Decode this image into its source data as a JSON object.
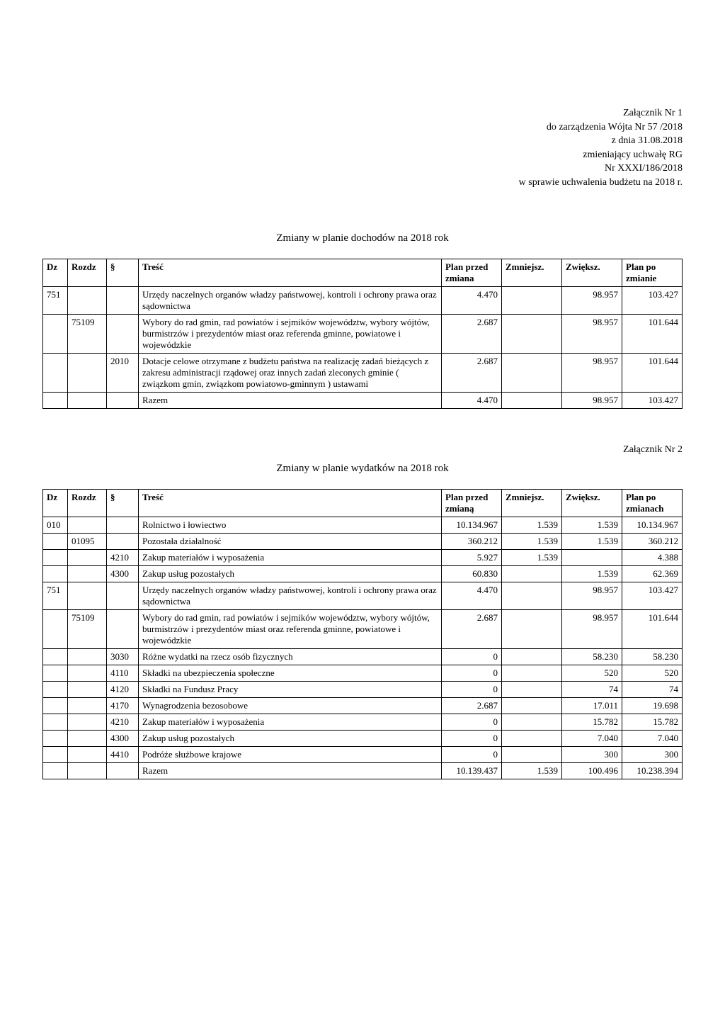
{
  "header": {
    "line1": "Załącznik Nr 1",
    "line2": "do zarządzenia Wójta Nr  57 /2018",
    "line3": "z dnia 31.08.2018",
    "line4": "zmieniający uchwałę RG",
    "line5": "Nr XXXI/186/2018",
    "line6": "w sprawie uchwalenia budżetu na 2018 r."
  },
  "table1": {
    "title": "Zmiany w planie dochodów na 2018 rok",
    "headers": {
      "dz": "Dz",
      "rozdz": "Rozdz",
      "par": "§",
      "tresc": "Treść",
      "plan_przed": "Plan przed zmiana",
      "zmniejsz": "Zmniejsz.",
      "zwieksz": "Zwiększ.",
      "plan_po": "Plan po zmianie"
    },
    "rows": [
      {
        "dz": "751",
        "rozdz": "",
        "par": "",
        "tresc": "Urzędy naczelnych organów władzy państwowej, kontroli i ochrony prawa oraz sądownictwa",
        "plan_przed": "4.470",
        "zmniejsz": "",
        "zwieksz": "98.957",
        "plan_po": "103.427"
      },
      {
        "dz": "",
        "rozdz": "75109",
        "par": "",
        "tresc": "Wybory do rad gmin, rad powiatów i sejmików województw, wybory wójtów, burmistrzów i prezydentów miast oraz referenda gminne, powiatowe i wojewódzkie",
        "plan_przed": "2.687",
        "zmniejsz": "",
        "zwieksz": "98.957",
        "plan_po": "101.644"
      },
      {
        "dz": "",
        "rozdz": "",
        "par": "2010",
        "tresc": "Dotacje celowe otrzymane z budżetu państwa na realizację zadań bieżących z zakresu administracji rządowej oraz innych zadań zleconych gminie ( związkom gmin, związkom powiatowo-gminnym ) ustawami",
        "plan_przed": "2.687",
        "zmniejsz": "",
        "zwieksz": "98.957",
        "plan_po": "101.644"
      },
      {
        "dz": "",
        "rozdz": "",
        "par": "",
        "tresc": "Razem",
        "plan_przed": "4.470",
        "zmniejsz": "",
        "zwieksz": "98.957",
        "plan_po": "103.427"
      }
    ]
  },
  "attachment2_label": "Załącznik Nr 2",
  "table2": {
    "title": "Zmiany w planie wydatków na 2018 rok",
    "headers": {
      "dz": "Dz",
      "rozdz": "Rozdz",
      "par": "§",
      "tresc": "Treść",
      "plan_przed": "Plan przed zmianą",
      "zmniejsz": "Zmniejsz.",
      "zwieksz": "Zwiększ.",
      "plan_po": "Plan po zmianach"
    },
    "rows": [
      {
        "dz": "010",
        "rozdz": "",
        "par": "",
        "tresc": "Rolnictwo i łowiectwo",
        "plan_przed": "10.134.967",
        "zmniejsz": "1.539",
        "zwieksz": "1.539",
        "plan_po": "10.134.967"
      },
      {
        "dz": "",
        "rozdz": "01095",
        "par": "",
        "tresc": "Pozostała działalność",
        "plan_przed": "360.212",
        "zmniejsz": "1.539",
        "zwieksz": "1.539",
        "plan_po": "360.212"
      },
      {
        "dz": "",
        "rozdz": "",
        "par": "4210",
        "tresc": "Zakup materiałów i wyposażenia",
        "plan_przed": "5.927",
        "zmniejsz": "1.539",
        "zwieksz": "",
        "plan_po": "4.388"
      },
      {
        "dz": "",
        "rozdz": "",
        "par": "4300",
        "tresc": "Zakup usług pozostałych",
        "plan_przed": "60.830",
        "zmniejsz": "",
        "zwieksz": "1.539",
        "plan_po": "62.369"
      },
      {
        "dz": "751",
        "rozdz": "",
        "par": "",
        "tresc": "Urzędy naczelnych organów władzy państwowej, kontroli i ochrony prawa oraz sądownictwa",
        "plan_przed": "4.470",
        "zmniejsz": "",
        "zwieksz": "98.957",
        "plan_po": "103.427"
      },
      {
        "dz": "",
        "rozdz": "75109",
        "par": "",
        "tresc": "Wybory do rad gmin, rad powiatów i sejmików województw, wybory wójtów, burmistrzów i prezydentów miast oraz referenda gminne, powiatowe i wojewódzkie",
        "plan_przed": "2.687",
        "zmniejsz": "",
        "zwieksz": "98.957",
        "plan_po": "101.644"
      },
      {
        "dz": "",
        "rozdz": "",
        "par": "3030",
        "tresc": "Różne wydatki na rzecz osób fizycznych",
        "plan_przed": "0",
        "zmniejsz": "",
        "zwieksz": "58.230",
        "plan_po": "58.230"
      },
      {
        "dz": "",
        "rozdz": "",
        "par": "4110",
        "tresc": "Składki na ubezpieczenia społeczne",
        "plan_przed": "0",
        "zmniejsz": "",
        "zwieksz": "520",
        "plan_po": "520"
      },
      {
        "dz": "",
        "rozdz": "",
        "par": "4120",
        "tresc": "Składki na Fundusz Pracy",
        "plan_przed": "0",
        "zmniejsz": "",
        "zwieksz": "74",
        "plan_po": "74"
      },
      {
        "dz": "",
        "rozdz": "",
        "par": "4170",
        "tresc": "Wynagrodzenia bezosobowe",
        "plan_przed": "2.687",
        "zmniejsz": "",
        "zwieksz": "17.011",
        "plan_po": "19.698"
      },
      {
        "dz": "",
        "rozdz": "",
        "par": "4210",
        "tresc": "Zakup materiałów i wyposażenia",
        "plan_przed": "0",
        "zmniejsz": "",
        "zwieksz": "15.782",
        "plan_po": "15.782"
      },
      {
        "dz": "",
        "rozdz": "",
        "par": "4300",
        "tresc": "Zakup usług pozostałych",
        "plan_przed": "0",
        "zmniejsz": "",
        "zwieksz": "7.040",
        "plan_po": "7.040"
      },
      {
        "dz": "",
        "rozdz": "",
        "par": "4410",
        "tresc": "Podróże służbowe krajowe",
        "plan_przed": "0",
        "zmniejsz": "",
        "zwieksz": "300",
        "plan_po": "300"
      },
      {
        "dz": "",
        "rozdz": "",
        "par": "",
        "tresc": "Razem",
        "plan_przed": "10.139.437",
        "zmniejsz": "1.539",
        "zwieksz": "100.496",
        "plan_po": "10.238.394"
      }
    ]
  }
}
